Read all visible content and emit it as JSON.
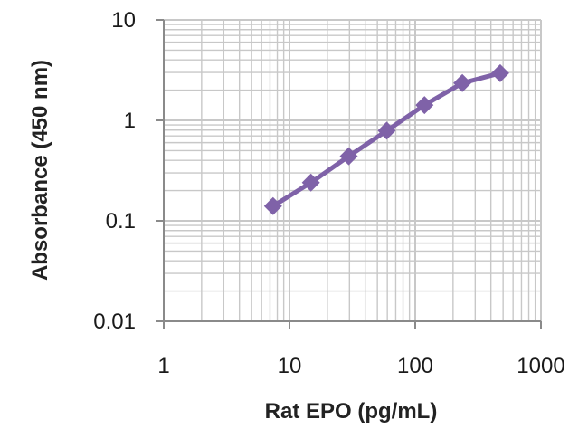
{
  "chart_data": {
    "type": "line",
    "title": "",
    "xlabel": "Rat EPO (pg/mL)",
    "ylabel": "Absorbance (450 nm)",
    "x_scale": "log",
    "y_scale": "log",
    "xlim": [
      1,
      1000
    ],
    "ylim": [
      0.01,
      10
    ],
    "grid": true,
    "legend": "none",
    "xticks": [
      "1",
      "10",
      "100",
      "1000"
    ],
    "yticks": [
      "0.01",
      "0.1",
      "1",
      "10"
    ],
    "series": [
      {
        "x": [
          7.4,
          14.8,
          29.6,
          59.3,
          118.5,
          237,
          474
        ],
        "y": [
          0.14,
          0.24,
          0.44,
          0.79,
          1.42,
          2.35,
          2.95
        ]
      }
    ],
    "colors": {
      "series": "#7f62a8",
      "grid": "#c8c8c8",
      "axis": "#8a8a8a"
    }
  }
}
